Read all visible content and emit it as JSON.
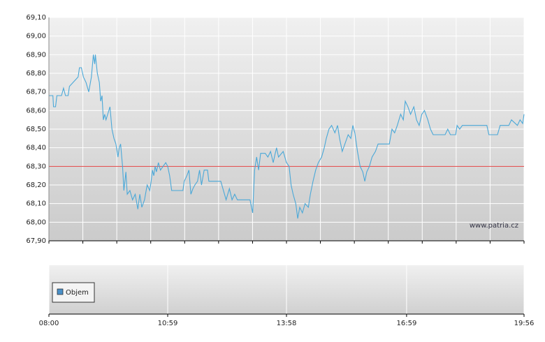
{
  "chart_data": {
    "type": "line",
    "watermark": "www.patria.cz",
    "xlim": [
      "08:00",
      "19:56"
    ],
    "xticks": [
      "08:00",
      "10:59",
      "13:58",
      "16:59",
      "19:56"
    ],
    "ylim": [
      67.9,
      69.1
    ],
    "yticks": [
      {
        "value": 67.9,
        "label": "67,90"
      },
      {
        "value": 68.0,
        "label": "68,00"
      },
      {
        "value": 68.1,
        "label": "68,10"
      },
      {
        "value": 68.2,
        "label": "68,20"
      },
      {
        "value": 68.3,
        "label": "68,30"
      },
      {
        "value": 68.4,
        "label": "68,40"
      },
      {
        "value": 68.5,
        "label": "68,50"
      },
      {
        "value": 68.6,
        "label": "68,60"
      },
      {
        "value": 68.7,
        "label": "68,70"
      },
      {
        "value": 68.8,
        "label": "68,80"
      },
      {
        "value": 68.9,
        "label": "68,90"
      },
      {
        "value": 69.0,
        "label": "69,00"
      },
      {
        "value": 69.1,
        "label": "69,10"
      }
    ],
    "grid": true,
    "reference_line": {
      "value": 68.3,
      "color": "#e04040"
    },
    "volume": {
      "name": "Objem",
      "color": "#4a90c8"
    },
    "series": [
      {
        "color": "#4aa8d8",
        "x": [
          "08:00",
          "08:06",
          "08:07",
          "08:10",
          "08:12",
          "08:19",
          "08:22",
          "08:25",
          "08:29",
          "08:31",
          "08:44",
          "08:46",
          "08:49",
          "08:52",
          "08:56",
          "09:00",
          "09:04",
          "09:07",
          "09:09",
          "09:10",
          "09:13",
          "09:16",
          "09:18",
          "09:20",
          "09:22",
          "09:24",
          "09:26",
          "09:32",
          "09:35",
          "09:38",
          "09:41",
          "09:44",
          "09:46",
          "09:48",
          "09:51",
          "09:53",
          "09:56",
          "09:58",
          "10:02",
          "10:06",
          "10:10",
          "10:14",
          "10:17",
          "10:20",
          "10:24",
          "10:28",
          "10:32",
          "10:34",
          "10:36",
          "10:38",
          "10:40",
          "10:42",
          "10:45",
          "10:48",
          "10:52",
          "10:56",
          "10:59",
          "11:02",
          "11:05",
          "11:22",
          "11:24",
          "11:28",
          "11:31",
          "11:34",
          "11:37",
          "11:40",
          "11:44",
          "11:47",
          "11:50",
          "11:54",
          "11:59",
          "12:01",
          "12:19",
          "12:23",
          "12:27",
          "12:32",
          "12:36",
          "12:40",
          "12:44",
          "12:49",
          "13:03",
          "13:07",
          "13:10",
          "13:13",
          "13:16",
          "13:19",
          "13:26",
          "13:30",
          "13:34",
          "13:38",
          "13:41",
          "13:43",
          "13:46",
          "13:53",
          "13:58",
          "14:02",
          "14:05",
          "14:08",
          "14:12",
          "14:15",
          "14:18",
          "14:22",
          "14:26",
          "14:31",
          "14:34",
          "14:38",
          "14:42",
          "14:46",
          "14:51",
          "14:55",
          "14:58",
          "15:02",
          "15:06",
          "15:11",
          "15:15",
          "15:18",
          "15:22",
          "15:26",
          "15:31",
          "15:35",
          "15:38",
          "15:41",
          "15:45",
          "15:49",
          "15:53",
          "15:56",
          "15:59",
          "16:03",
          "16:07",
          "16:12",
          "16:16",
          "16:33",
          "16:37",
          "16:41",
          "16:45",
          "16:50",
          "16:54",
          "16:57",
          "17:01",
          "17:05",
          "17:10",
          "17:14",
          "17:18",
          "17:22",
          "17:26",
          "17:31",
          "17:35",
          "17:39",
          "17:57",
          "18:01",
          "18:05",
          "18:13",
          "18:15",
          "18:19",
          "18:23",
          "19:00",
          "19:03",
          "19:16",
          "19:20",
          "19:33",
          "19:37",
          "19:46",
          "19:50",
          "19:54",
          "19:56"
        ],
        "values": [
          68.68,
          68.68,
          68.62,
          68.62,
          68.68,
          68.68,
          68.72,
          68.68,
          68.68,
          68.73,
          68.78,
          68.83,
          68.83,
          68.78,
          68.75,
          68.7,
          68.78,
          68.9,
          68.85,
          68.9,
          68.8,
          68.75,
          68.65,
          68.68,
          68.55,
          68.58,
          68.55,
          68.62,
          68.5,
          68.45,
          68.42,
          68.35,
          68.4,
          68.42,
          68.3,
          68.17,
          68.27,
          68.15,
          68.17,
          68.12,
          68.15,
          68.07,
          68.15,
          68.08,
          68.12,
          68.2,
          68.17,
          68.22,
          68.28,
          68.25,
          68.3,
          68.27,
          68.32,
          68.28,
          68.3,
          68.32,
          68.3,
          68.25,
          68.17,
          68.17,
          68.22,
          68.25,
          68.28,
          68.15,
          68.18,
          68.2,
          68.22,
          68.28,
          68.2,
          68.28,
          68.28,
          68.22,
          68.22,
          68.17,
          68.12,
          68.18,
          68.12,
          68.15,
          68.12,
          68.12,
          68.12,
          68.05,
          68.28,
          68.35,
          68.28,
          68.37,
          68.37,
          68.35,
          68.38,
          68.32,
          68.37,
          68.4,
          68.35,
          68.38,
          68.32,
          68.3,
          68.2,
          68.15,
          68.1,
          68.02,
          68.08,
          68.05,
          68.1,
          68.08,
          68.15,
          68.22,
          68.28,
          68.32,
          68.35,
          68.4,
          68.45,
          68.5,
          68.52,
          68.48,
          68.52,
          68.45,
          68.38,
          68.42,
          68.47,
          68.45,
          68.52,
          68.48,
          68.38,
          68.3,
          68.27,
          68.22,
          68.27,
          68.3,
          68.35,
          68.38,
          68.42,
          68.42,
          68.5,
          68.48,
          68.52,
          68.58,
          68.55,
          68.65,
          68.62,
          68.58,
          68.62,
          68.55,
          68.52,
          68.58,
          68.6,
          68.55,
          68.5,
          68.47,
          68.47,
          68.5,
          68.47,
          68.47,
          68.52,
          68.5,
          68.52,
          68.52,
          68.47,
          68.47,
          68.52,
          68.52,
          68.55,
          68.52,
          68.55,
          68.53,
          68.58
        ]
      }
    ]
  }
}
